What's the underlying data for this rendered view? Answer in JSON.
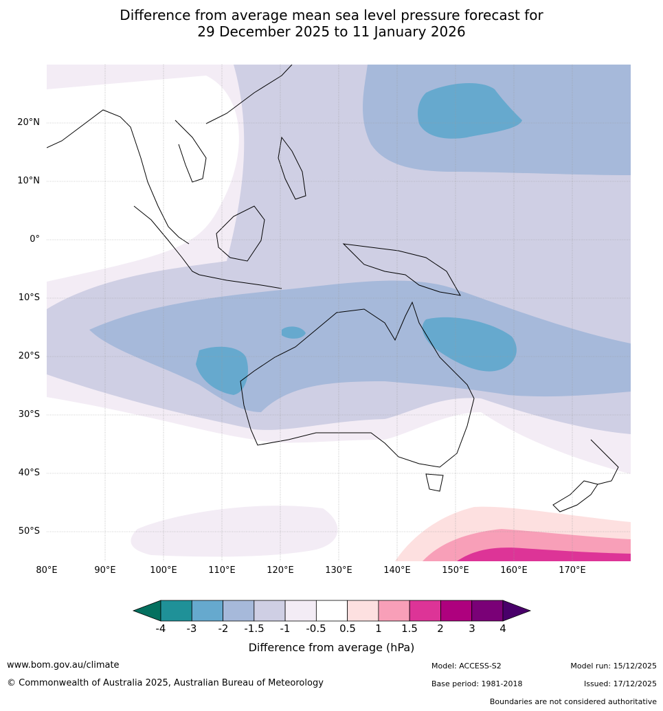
{
  "title": {
    "line1": "Difference from average mean sea level pressure forecast for",
    "line2": "29 December 2025 to 11 January 2026"
  },
  "map": {
    "lat_labels": [
      "20°N",
      "10°N",
      "0°",
      "10°S",
      "20°S",
      "30°S",
      "40°S",
      "50°S"
    ],
    "lon_labels": [
      "80°E",
      "90°E",
      "100°E",
      "110°E",
      "120°E",
      "130°E",
      "140°E",
      "150°E",
      "160°E",
      "170°E"
    ]
  },
  "colorbar": {
    "title": "Difference from average (hPa)",
    "ticks": [
      "-4",
      "-3",
      "-2",
      "-1.5",
      "-1",
      "-0.5",
      "0.5",
      "1",
      "1.5",
      "2",
      "3",
      "4"
    ],
    "colors": [
      "#04705f",
      "#1f9198",
      "#66a9ce",
      "#a6b9da",
      "#cfcfe4",
      "#f3ecf5",
      "#ffffff",
      "#fde0e0",
      "#f89fb8",
      "#dd3497",
      "#ae017e",
      "#7a0177",
      "#49006a"
    ]
  },
  "footer": {
    "website": "www.bom.gov.au/climate",
    "copyright": "© Commonwealth of Australia 2025, Australian Bureau of Meteorology",
    "model": "Model: ACCESS-S2",
    "base_period": "Base period: 1981-2018",
    "model_run": "Model run: 15/12/2025",
    "issued": "Issued: 17/12/2025",
    "disclaimer": "Boundaries are not considered authoritative"
  }
}
